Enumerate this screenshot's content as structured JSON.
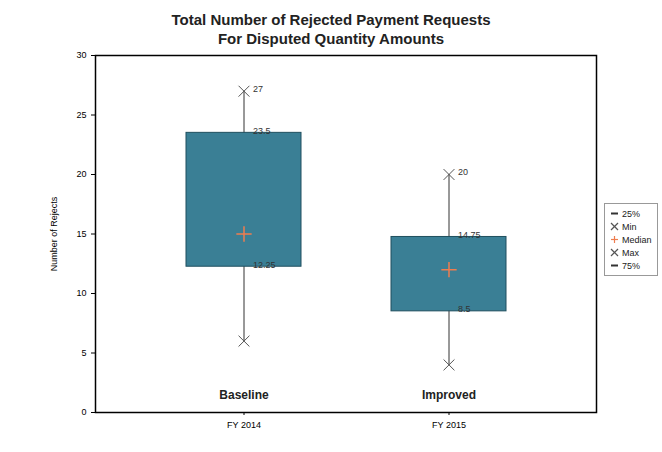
{
  "chart_data": {
    "type": "box",
    "title": "Total Number of Rejected Payment Requests",
    "subtitle": "For Disputed Quantity Amounts",
    "y_label": "Number of Rejects",
    "categories": [
      "FY 2014",
      "FY 2015"
    ],
    "box_labels": [
      "Baseline",
      "Improved"
    ],
    "min": [
      6,
      4
    ],
    "q1": [
      12.25,
      8.5
    ],
    "median": [
      15,
      12
    ],
    "q3": [
      23.5,
      14.75
    ],
    "max": [
      27,
      20
    ],
    "data_labels": true,
    "color": "#3a7f95",
    "median_color": "#ee7d4f",
    "ylim": [
      0,
      30
    ],
    "yticks": [
      0,
      5,
      10,
      15,
      20,
      25,
      30
    ],
    "grid": false,
    "legend": "right",
    "legend_items": [
      {
        "name": "25%",
        "marker": "dash",
        "color": "#333333"
      },
      {
        "name": "Min",
        "marker": "x",
        "color": "#555555"
      },
      {
        "name": "Median",
        "marker": "plus",
        "color": "#ee7d4f"
      },
      {
        "name": "Max",
        "marker": "x",
        "color": "#555555"
      },
      {
        "name": "75%",
        "marker": "dash",
        "color": "#333333"
      }
    ]
  }
}
